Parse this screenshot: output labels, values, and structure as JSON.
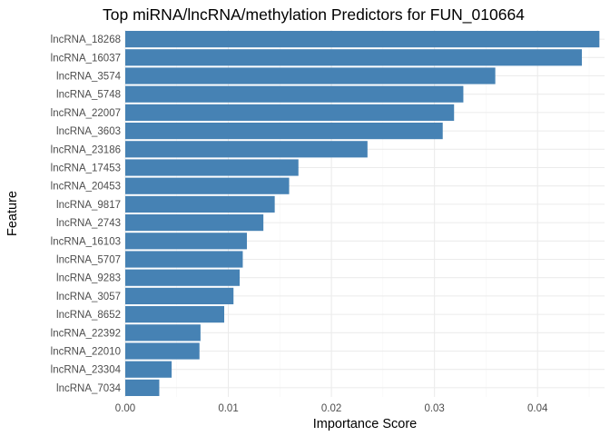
{
  "chart_data": {
    "type": "bar",
    "orientation": "horizontal",
    "title": "Top miRNA/lncRNA/methylation Predictors for FUN_010664",
    "xlabel": "Importance Score",
    "ylabel": "Feature",
    "xlim": [
      0,
      0.0465
    ],
    "x_ticks": [
      0.0,
      0.01,
      0.02,
      0.03,
      0.04
    ],
    "x_tick_labels": [
      "0.00",
      "0.01",
      "0.02",
      "0.03",
      "0.04"
    ],
    "bar_color": "#4682b4",
    "grid": true,
    "legend": "none",
    "categories": [
      "lncRNA_18268",
      "lncRNA_16037",
      "lncRNA_3574",
      "lncRNA_5748",
      "lncRNA_22007",
      "lncRNA_3603",
      "lncRNA_23186",
      "lncRNA_17453",
      "lncRNA_20453",
      "lncRNA_9817",
      "lncRNA_2743",
      "lncRNA_16103",
      "lncRNA_5707",
      "lncRNA_9283",
      "lncRNA_3057",
      "lncRNA_8652",
      "lncRNA_22392",
      "lncRNA_22010",
      "lncRNA_23304",
      "lncRNA_7034"
    ],
    "values": [
      0.046,
      0.0443,
      0.0359,
      0.0328,
      0.0319,
      0.0308,
      0.0235,
      0.0168,
      0.0159,
      0.0145,
      0.0134,
      0.0118,
      0.0114,
      0.0111,
      0.0105,
      0.0096,
      0.0073,
      0.0072,
      0.0045,
      0.0033
    ]
  }
}
